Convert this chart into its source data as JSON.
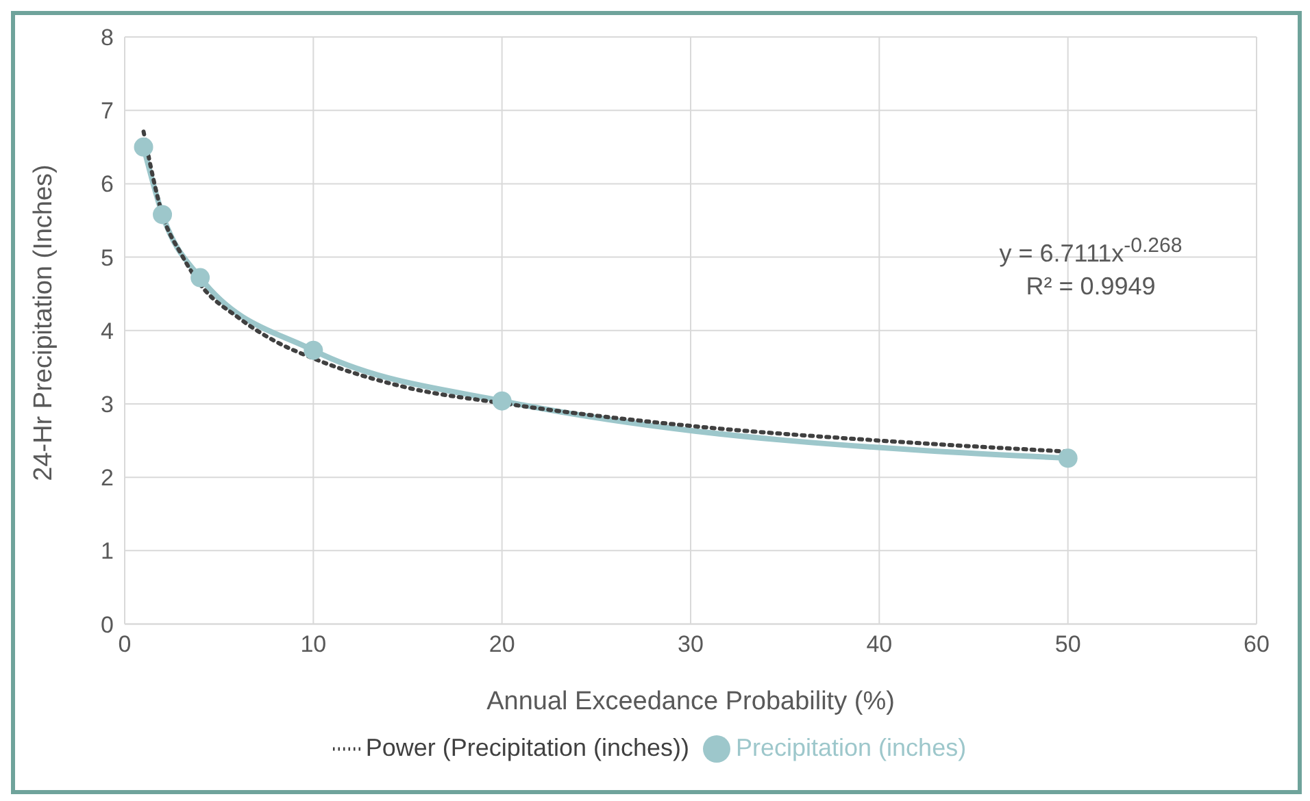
{
  "chart_data": {
    "type": "line",
    "xlabel": "Annual Exceedance Probability (%)",
    "ylabel": "24-Hr Precipitation (Inches)",
    "xlim": [
      0,
      60
    ],
    "xticks": [
      0,
      10,
      20,
      30,
      40,
      50,
      60
    ],
    "ylim": [
      0,
      8
    ],
    "yticks": [
      0,
      1,
      2,
      3,
      4,
      5,
      6,
      7,
      8
    ],
    "grid": true,
    "legend": "bottom",
    "annotations": [
      "y = 6.7111x$^{-0.268}$",
      "R² = 0.9949"
    ],
    "series": [
      {
        "name": "Precipitation (inches)",
        "color": "#9dc7cb",
        "x": [
          1,
          2,
          4,
          10,
          20,
          50
        ],
        "values": [
          6.5,
          5.58,
          4.72,
          3.73,
          3.04,
          2.26
        ],
        "marker": "circle",
        "line_style": "solid"
      },
      {
        "name": "Power (Precipitation (inches))",
        "color": "#404040",
        "x": [
          1,
          2,
          3,
          4,
          6,
          8,
          10,
          15,
          20,
          30,
          40,
          50
        ],
        "values": [
          6.71,
          5.58,
          5.04,
          4.63,
          4.18,
          3.85,
          3.62,
          3.22,
          3.01,
          2.7,
          2.5,
          2.35
        ],
        "marker": "none",
        "line_style": "dotted"
      }
    ]
  }
}
